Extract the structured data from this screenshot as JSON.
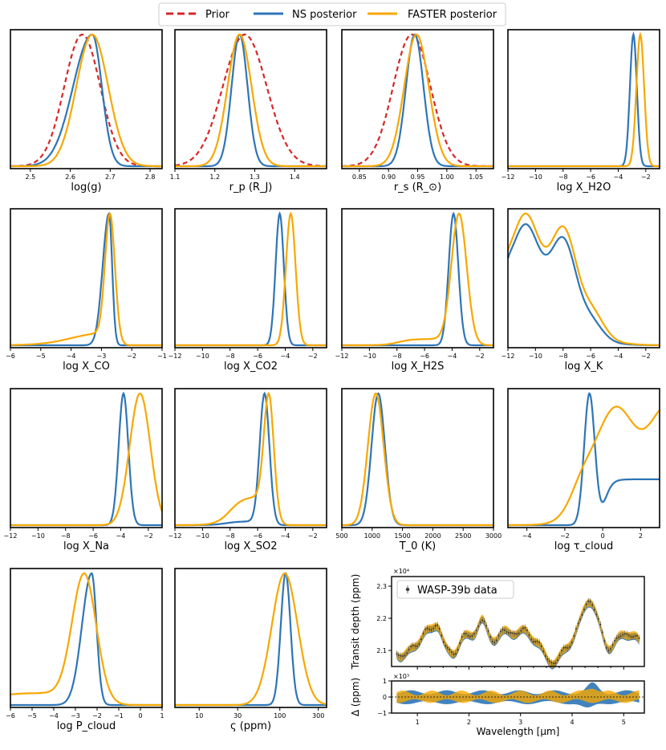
{
  "colors": {
    "prior": "#d62728",
    "ns": "#2e75b6",
    "faster": "#f7a800",
    "data": "#333333"
  },
  "legend": {
    "prior": "Prior",
    "ns": "NS posterior",
    "faster": "FASTER posterior"
  },
  "chart_data": [
    {
      "id": "logg",
      "type": "line",
      "label": "log(g)",
      "xlim": [
        2.45,
        2.83
      ],
      "ticks": [
        "2.5",
        "2.6",
        "2.7",
        "2.8"
      ],
      "tickvals": [
        2.5,
        2.6,
        2.7,
        2.8
      ],
      "series": {
        "prior": {
          "mu": 2.63,
          "sd": 0.045
        },
        "ns": {
          "mu": 2.655,
          "sd": 0.03,
          "skew": -1
        },
        "faster": {
          "mu": 2.655,
          "sd": 0.04
        }
      }
    },
    {
      "id": "rp",
      "type": "line",
      "label": "r_p (R_J)",
      "xlim": [
        1.1,
        1.48
      ],
      "ticks": [
        "1.1",
        "1.2",
        "1.3",
        "1.4"
      ],
      "tickvals": [
        1.1,
        1.2,
        1.3,
        1.4
      ],
      "series": {
        "prior": {
          "mu": 1.275,
          "sd": 0.055
        },
        "ns": {
          "mu": 1.262,
          "sd": 0.02
        },
        "faster": {
          "mu": 1.262,
          "sd": 0.03
        }
      }
    },
    {
      "id": "rs",
      "type": "line",
      "label": "r_s (R_⊙)",
      "xlim": [
        0.82,
        1.08
      ],
      "ticks": [
        "0.85",
        "0.90",
        "0.95",
        "1.00",
        "1.05"
      ],
      "tickvals": [
        0.85,
        0.9,
        0.95,
        1.0,
        1.05
      ],
      "series": {
        "prior": {
          "mu": 0.94,
          "sd": 0.032
        },
        "ns": {
          "mu": 0.945,
          "sd": 0.015
        },
        "faster": {
          "mu": 0.948,
          "sd": 0.021
        }
      }
    },
    {
      "id": "h2o",
      "type": "line",
      "label": "log X_H2O",
      "xlim": [
        -12,
        -1
      ],
      "ticks": [
        "−12",
        "−10",
        "−8",
        "−6",
        "−4",
        "−2"
      ],
      "tickvals": [
        -12,
        -10,
        -8,
        -6,
        -4,
        -2
      ],
      "series": {
        "ns": {
          "mu": -2.9,
          "sd": 0.25
        },
        "faster": {
          "mu": -2.4,
          "sd": 0.28
        }
      }
    },
    {
      "id": "co",
      "type": "line",
      "label": "log X_CO",
      "xlim": [
        -6,
        -1
      ],
      "ticks": [
        "−6",
        "−5",
        "−4",
        "−3",
        "−2",
        "−1"
      ],
      "tickvals": [
        -6,
        -5,
        -4,
        -3,
        -2,
        -1
      ],
      "series": {
        "ns": {
          "mu": -2.75,
          "sd": 0.13,
          "skew": -1
        },
        "faster": {
          "mu": -2.72,
          "sd": 0.16,
          "tail": 0.12
        }
      }
    },
    {
      "id": "co2",
      "type": "line",
      "label": "log X_CO2",
      "xlim": [
        -12,
        -1
      ],
      "ticks": [
        "−12",
        "−10",
        "−8",
        "−6",
        "−4",
        "−2"
      ],
      "tickvals": [
        -12,
        -10,
        -8,
        -6,
        -4,
        -2
      ],
      "series": {
        "ns": {
          "mu": -4.4,
          "sd": 0.3
        },
        "faster": {
          "mu": -3.6,
          "sd": 0.35
        }
      }
    },
    {
      "id": "h2s",
      "type": "line",
      "label": "log X_H2S",
      "xlim": [
        -12,
        -1
      ],
      "ticks": [
        "−12",
        "−10",
        "−8",
        "−6",
        "−4",
        "−2"
      ],
      "tickvals": [
        -12,
        -10,
        -8,
        -6,
        -4,
        -2
      ],
      "series": {
        "ns": {
          "mu": -3.9,
          "sd": 0.35
        },
        "faster": {
          "mu": -3.5,
          "sd": 0.55,
          "tail": 0.05
        }
      }
    },
    {
      "id": "k",
      "type": "line",
      "label": "log X_K",
      "xlim": [
        -12,
        -1
      ],
      "ticks": [
        "−12",
        "−10",
        "−8",
        "−6",
        "−4",
        "−2"
      ],
      "tickvals": [
        -12,
        -10,
        -8,
        -6,
        -4,
        -2
      ],
      "series": {
        "ns": {
          "plateau": [
            -12,
            -6.5
          ],
          "edge": 0.7
        },
        "faster": {
          "plateau": [
            -12,
            -6.3
          ],
          "edge": 0.75
        }
      }
    },
    {
      "id": "na",
      "type": "line",
      "label": "log X_Na",
      "xlim": [
        -12,
        -1
      ],
      "ticks": [
        "−12",
        "−10",
        "−8",
        "−6",
        "−4",
        "−2"
      ],
      "tickvals": [
        -12,
        -10,
        -8,
        -6,
        -4,
        -2
      ],
      "series": {
        "ns": {
          "mu": -3.8,
          "sd": 0.35
        },
        "faster": {
          "mu": -2.6,
          "sd": 0.75
        }
      }
    },
    {
      "id": "so2",
      "type": "line",
      "label": "log X_SO2",
      "xlim": [
        -12,
        -1
      ],
      "ticks": [
        "−12",
        "−10",
        "−8",
        "−6",
        "−4",
        "−2"
      ],
      "tickvals": [
        -12,
        -10,
        -8,
        -6,
        -4,
        -2
      ],
      "series": {
        "ns": {
          "mu": -5.5,
          "sd": 0.35,
          "tail": 0.03
        },
        "faster": {
          "mu": -5.2,
          "sd": 0.35,
          "tail": 0.28
        }
      }
    },
    {
      "id": "t0",
      "type": "line",
      "label": "T_0 (K)",
      "xlim": [
        500,
        3000
      ],
      "ticks": [
        "500",
        "1000",
        "1500",
        "2000",
        "2500",
        "3000"
      ],
      "tickvals": [
        500,
        1000,
        1500,
        2000,
        2500,
        3000
      ],
      "series": {
        "ns": {
          "mu": 1100,
          "sd": 110
        },
        "faster": {
          "mu": 1060,
          "sd": 130
        }
      }
    },
    {
      "id": "tau",
      "type": "line",
      "label": "log τ_cloud",
      "xlim": [
        -5,
        3
      ],
      "ticks": [
        "−4",
        "−2",
        "0",
        "2"
      ],
      "tickvals": [
        -4,
        -2,
        0,
        2
      ],
      "series": {
        "ns": {
          "mu": -0.7,
          "sd": 0.28,
          "tail2": 0.35
        },
        "faster": {
          "rise": -1.2,
          "level": 0.9
        }
      }
    },
    {
      "id": "pcloud",
      "type": "line",
      "label": "log P_cloud",
      "xlim": [
        -6,
        1
      ],
      "ticks": [
        "−6",
        "−5",
        "−4",
        "−3",
        "−2",
        "−1",
        "0",
        "1"
      ],
      "tickvals": [
        -6,
        -5,
        -4,
        -3,
        -2,
        -1,
        0,
        1
      ],
      "series": {
        "ns": {
          "mu": -2.25,
          "sd": 0.28,
          "skew": -1
        },
        "faster": {
          "mu": -2.6,
          "sd": 0.55,
          "tail": 0.1
        }
      }
    },
    {
      "id": "zeta",
      "type": "line",
      "label": "ς (ppm)",
      "xscale": "log",
      "xlim": [
        5,
        380
      ],
      "ticks": [
        "10",
        "30",
        "100",
        "300"
      ],
      "tickvals": [
        10,
        30,
        100,
        300
      ],
      "series": {
        "ns": {
          "mu": 118,
          "sd": 0.06
        },
        "faster": {
          "mu": 115,
          "sd": 0.16
        }
      }
    },
    {
      "id": "spectrum",
      "type": "line",
      "ylabel": "Transit depth (ppm)",
      "yexp": "×10⁴",
      "legend": "WASP-39b data",
      "xlim": [
        0.5,
        5.4
      ],
      "ylim": [
        2.05,
        2.33
      ],
      "yticks": [
        "2.1",
        "2.2",
        "2.3"
      ],
      "ytickvals": [
        2.1,
        2.2,
        2.3
      ]
    },
    {
      "id": "residual",
      "type": "line",
      "ylabel": "Δ (ppm)",
      "yexp": "×10³",
      "xlabel": "Wavelength [μm]",
      "xlim": [
        0.5,
        5.4
      ],
      "ylim": [
        -1,
        1
      ],
      "yticks": [
        "1",
        "0",
        "−1"
      ],
      "ytickvals": [
        1,
        0,
        -1
      ],
      "xticks": [
        "1",
        "2",
        "3",
        "4",
        "5"
      ],
      "xtickvals": [
        1,
        2,
        3,
        4,
        5
      ]
    }
  ]
}
